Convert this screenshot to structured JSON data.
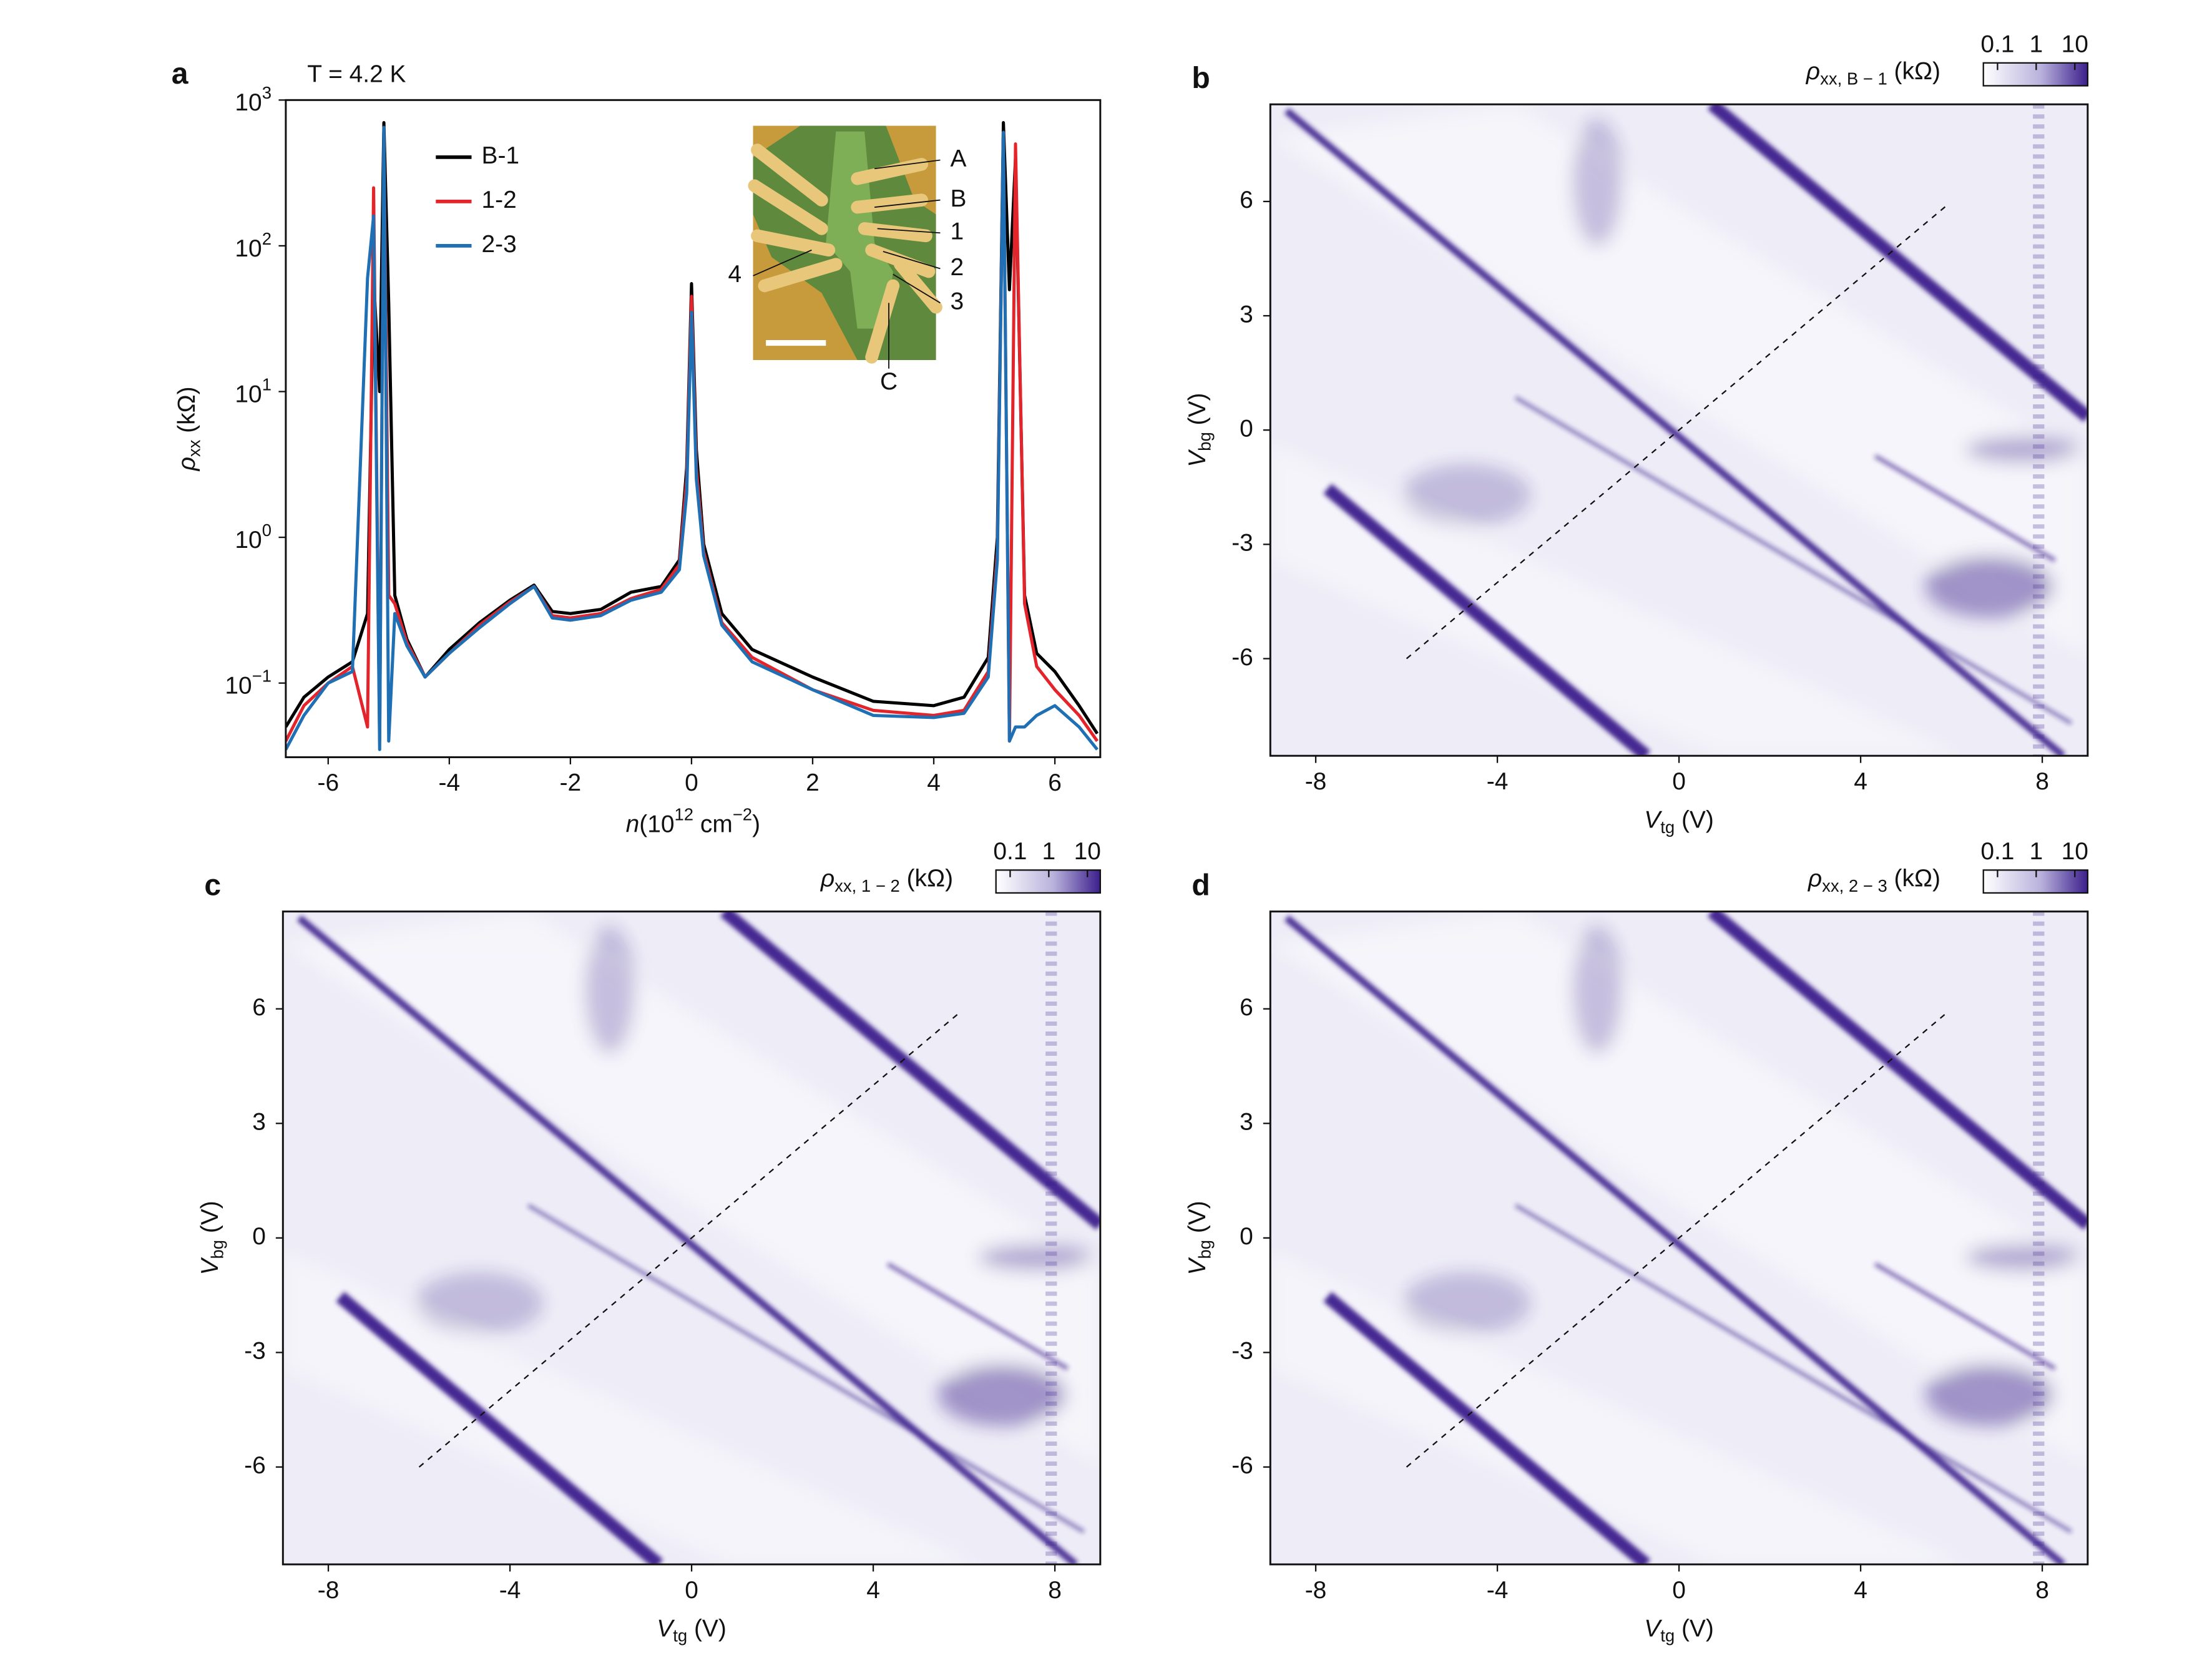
{
  "chart_data": [
    {
      "type": "line",
      "panel": "a",
      "annotation": "T = 4.2 K",
      "xlabel": {
        "text": "n",
        "unit": "(10",
        "exp": "12",
        "unit2": " cm",
        "exp2": "−2",
        "close": ")"
      },
      "ylabel": {
        "text": "ρ",
        "sub": "xx",
        "unit": " (kΩ)"
      },
      "log_y": true,
      "legend": "upper left",
      "xlim": [
        -6.7,
        6.75
      ],
      "xticks": [
        -6,
        -4,
        -2,
        0,
        2,
        4,
        6
      ],
      "ylim": [
        0.031,
        1000
      ],
      "yticks": [
        {
          "value": 0.1,
          "label": "10",
          "exp": "−1"
        },
        {
          "value": 1,
          "label": "10",
          "exp": "0"
        },
        {
          "value": 10,
          "label": "10",
          "exp": "1"
        },
        {
          "value": 100,
          "label": "10",
          "exp": "2"
        },
        {
          "value": 1000,
          "label": "10",
          "exp": "3"
        }
      ],
      "x": [
        -6.7,
        -6.4,
        -6,
        -5.6,
        -5.35,
        -5.25,
        -5.15,
        -5.08,
        -5.0,
        -4.9,
        -4.7,
        -4.4,
        -4,
        -3.5,
        -3,
        -2.6,
        -2.3,
        -2,
        -1.5,
        -1,
        -0.5,
        -0.2,
        -0.08,
        0,
        0.08,
        0.2,
        0.5,
        1,
        2,
        3,
        4,
        4.5,
        4.9,
        5.05,
        5.15,
        5.25,
        5.35,
        5.5,
        5.7,
        6,
        6.4,
        6.7
      ],
      "series": [
        {
          "name": "B-1",
          "color": "#000000",
          "values": [
            0.05,
            0.08,
            0.11,
            0.14,
            0.3,
            60,
            10,
            700,
            40,
            0.4,
            0.2,
            0.11,
            0.17,
            0.26,
            0.37,
            0.47,
            0.31,
            0.3,
            0.32,
            0.42,
            0.46,
            0.7,
            3,
            55,
            4,
            0.9,
            0.3,
            0.17,
            0.11,
            0.075,
            0.07,
            0.08,
            0.15,
            1,
            700,
            50,
            400,
            0.4,
            0.16,
            0.12,
            0.07,
            0.045
          ]
        },
        {
          "name": "1-2",
          "color": "#e3242b",
          "values": [
            0.04,
            0.07,
            0.1,
            0.13,
            0.05,
            250,
            0.04,
            600,
            0.4,
            0.35,
            0.19,
            0.11,
            0.16,
            0.25,
            0.36,
            0.46,
            0.29,
            0.28,
            0.3,
            0.38,
            0.44,
            0.65,
            2.5,
            45,
            3,
            0.8,
            0.26,
            0.15,
            0.09,
            0.065,
            0.06,
            0.065,
            0.12,
            0.8,
            600,
            0.04,
            500,
            0.35,
            0.13,
            0.09,
            0.06,
            0.04
          ]
        },
        {
          "name": "2-3",
          "color": "#1f6fb4",
          "values": [
            0.035,
            0.06,
            0.1,
            0.12,
            60,
            160,
            0.035,
            650,
            0.04,
            0.3,
            0.18,
            0.11,
            0.16,
            0.24,
            0.35,
            0.46,
            0.28,
            0.27,
            0.29,
            0.37,
            0.42,
            0.6,
            2,
            35,
            2.5,
            0.75,
            0.25,
            0.14,
            0.09,
            0.06,
            0.058,
            0.062,
            0.11,
            0.7,
            600,
            0.04,
            0.05,
            0.05,
            0.06,
            0.07,
            0.05,
            0.035
          ]
        }
      ],
      "inset_labels": [
        "A",
        "B",
        "1",
        "2",
        "3",
        "4",
        "C"
      ]
    },
    {
      "type": "heatmap",
      "panel": "b",
      "xlabel": {
        "text": "V",
        "sub": "tg",
        "unit": " (V)"
      },
      "ylabel": {
        "text": "V",
        "sub": "bg",
        "unit": " (V)"
      },
      "xlim": [
        -9,
        9
      ],
      "xticks": [
        -8,
        -4,
        0,
        4,
        8
      ],
      "ylim": [
        -8.55,
        8.55
      ],
      "yticks": [
        -6,
        -3,
        0,
        3,
        6
      ],
      "colorbar": {
        "label": {
          "text": "ρ",
          "sub": "xx, B − 1",
          "unit": " (kΩ)"
        },
        "lim": [
          0.043,
          21.5
        ],
        "ticks": [
          0.1,
          1,
          10
        ],
        "log": true,
        "colors": [
          "#ffffff",
          "#3b1f8c"
        ]
      },
      "dashed_line": {
        "x": [
          -6,
          5.9
        ],
        "y": [
          -6,
          5.9
        ]
      }
    },
    {
      "type": "heatmap",
      "panel": "c",
      "xlabel": {
        "text": "V",
        "sub": "tg",
        "unit": " (V)"
      },
      "ylabel": {
        "text": "V",
        "sub": "bg",
        "unit": " (V)"
      },
      "xlim": [
        -9,
        9
      ],
      "xticks": [
        -8,
        -4,
        0,
        4,
        8
      ],
      "ylim": [
        -8.55,
        8.55
      ],
      "yticks": [
        -6,
        -3,
        0,
        3,
        6
      ],
      "colorbar": {
        "label": {
          "text": "ρ",
          "sub": "xx, 1 − 2",
          "unit": " (kΩ)"
        },
        "lim": [
          0.043,
          21.5
        ],
        "ticks": [
          0.1,
          1,
          10
        ],
        "log": true,
        "colors": [
          "#ffffff",
          "#3b1f8c"
        ]
      },
      "dashed_line": {
        "x": [
          -6,
          5.9
        ],
        "y": [
          -6,
          5.9
        ]
      }
    },
    {
      "type": "heatmap",
      "panel": "d",
      "xlabel": {
        "text": "V",
        "sub": "tg",
        "unit": " (V)"
      },
      "ylabel": {
        "text": "V",
        "sub": "bg",
        "unit": " (V)"
      },
      "xlim": [
        -9,
        9
      ],
      "xticks": [
        -8,
        -4,
        0,
        4,
        8
      ],
      "ylim": [
        -8.55,
        8.55
      ],
      "yticks": [
        -6,
        -3,
        0,
        3,
        6
      ],
      "colorbar": {
        "label": {
          "text": "ρ",
          "sub": "xx, 2 − 3",
          "unit": " (kΩ)"
        },
        "lim": [
          0.043,
          21.5
        ],
        "ticks": [
          0.1,
          1,
          10
        ],
        "log": true,
        "colors": [
          "#ffffff",
          "#3b1f8c"
        ]
      },
      "dashed_line": {
        "x": [
          -6,
          5.9
        ],
        "y": [
          -6,
          5.9
        ]
      }
    }
  ]
}
